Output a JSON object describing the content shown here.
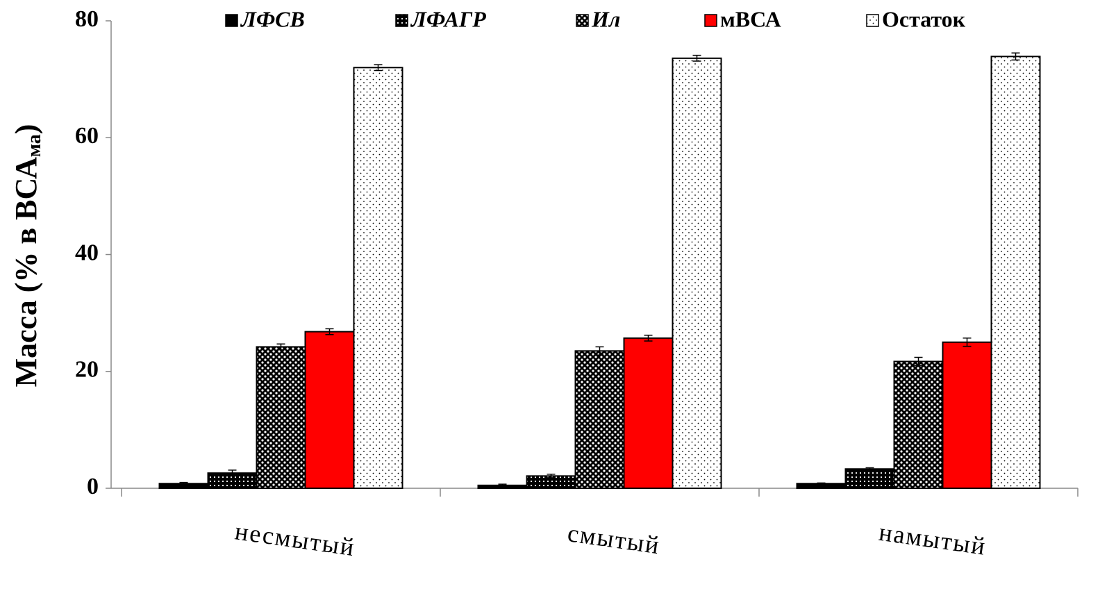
{
  "chart_data": {
    "type": "bar",
    "y_label": "Масса (% в ВСА",
    "y_label_sub": "ма",
    "y_label_end": ")",
    "categories": [
      "несмытый",
      "смытый",
      "намытый"
    ],
    "series": [
      {
        "name": "ЛФСВ",
        "color": "#000000",
        "pattern": "solid",
        "values": [
          0.8,
          0.5,
          0.8
        ],
        "errors": [
          0.2,
          0.2,
          0.1
        ]
      },
      {
        "name": "ЛФАГР",
        "color": "#000000",
        "pattern": "dense-dots",
        "values": [
          2.6,
          2.1,
          3.3
        ],
        "errors": [
          0.5,
          0.3,
          0.2
        ]
      },
      {
        "name": "Ил",
        "color": "#000000",
        "pattern": "checker",
        "values": [
          24.2,
          23.5,
          21.7
        ],
        "errors": [
          0.5,
          0.7,
          0.7
        ]
      },
      {
        "name": "мВСА",
        "color": "#ff0000",
        "pattern": "solid",
        "values": [
          26.8,
          25.7,
          25.0
        ],
        "errors": [
          0.5,
          0.5,
          0.7
        ]
      },
      {
        "name": "Остаток",
        "color": "#000000",
        "pattern": "sparse-dots",
        "values": [
          72.0,
          73.6,
          73.9
        ],
        "errors": [
          0.5,
          0.5,
          0.6
        ]
      }
    ],
    "ylim": [
      0,
      80
    ],
    "yticks": [
      0,
      20,
      40,
      60,
      80
    ],
    "legend": "top"
  }
}
